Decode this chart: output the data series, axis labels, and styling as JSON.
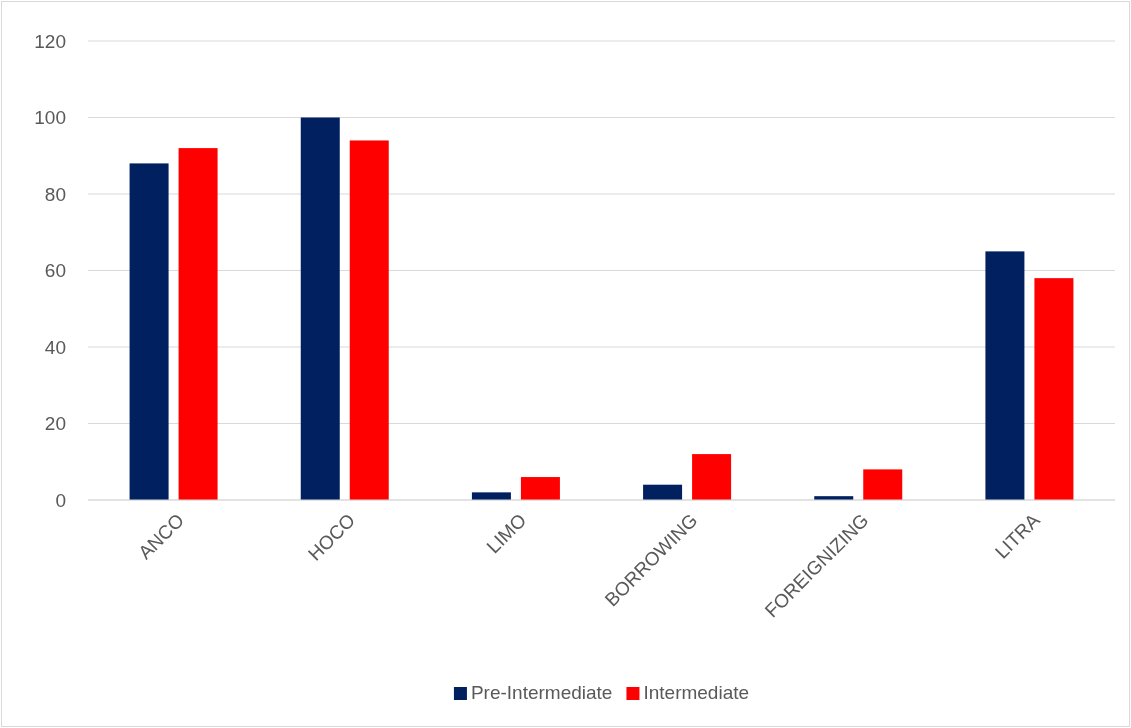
{
  "chart_data": {
    "type": "bar",
    "categories": [
      "ANCO",
      "HOCO",
      "LIMO",
      "BORROWING",
      "FOREIGNIZING",
      "LITRA"
    ],
    "series": [
      {
        "name": "Pre-Intermediate",
        "color": "#002060",
        "values": [
          88,
          100,
          2,
          4,
          1,
          65
        ]
      },
      {
        "name": "Intermediate",
        "color": "#ff0000",
        "values": [
          92,
          94,
          6,
          12,
          8,
          58
        ]
      }
    ],
    "ylim": [
      0,
      120
    ],
    "yticks": [
      0,
      20,
      40,
      60,
      80,
      100,
      120
    ],
    "grid": "y",
    "legend": "bottom"
  }
}
